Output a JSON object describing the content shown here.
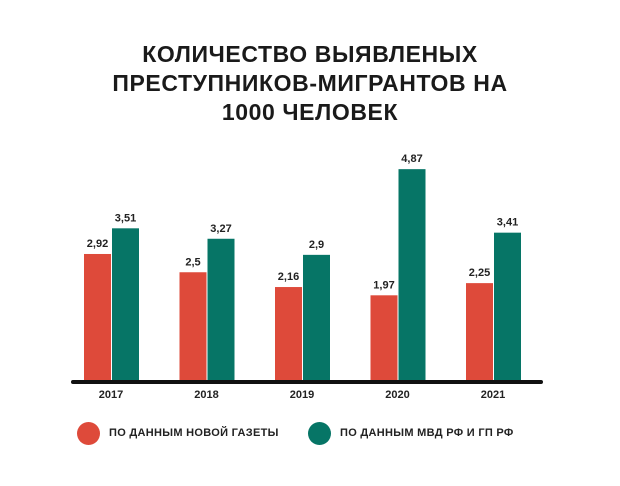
{
  "title_lines": [
    "КОЛИЧЕСТВО ВЫЯВЛЕНЫХ",
    "ПРЕСТУПНИКОВ-МИГРАНТОВ НА",
    "1000 ЧЕЛОВЕК"
  ],
  "colors": {
    "red": "#de4a3a",
    "green": "#067566",
    "axis": "#111111"
  },
  "chart_data": {
    "type": "bar",
    "title": "КОЛИЧЕСТВО ВЫЯВЛЕНЫХ ПРЕСТУПНИКОВ-МИГРАНТОВ НА 1000 ЧЕЛОВЕК",
    "categories": [
      "2017",
      "2018",
      "2019",
      "2020",
      "2021"
    ],
    "series": [
      {
        "name": "ПО ДАННЫМ НОВОЙ ГАЗЕТЫ",
        "values": [
          2.92,
          2.5,
          2.16,
          1.97,
          2.25
        ],
        "labels": [
          "2,92",
          "2,5",
          "2,16",
          "1,97",
          "2,25"
        ],
        "color": "#de4a3a"
      },
      {
        "name": "ПО ДАННЫМ МВД РФ И ГП РФ",
        "values": [
          3.51,
          3.27,
          2.9,
          4.87,
          3.41
        ],
        "labels": [
          "3,51",
          "3,27",
          "2,9",
          "4,87",
          "3,41"
        ],
        "color": "#067566"
      }
    ],
    "ylim": [
      0,
      5
    ],
    "grid": false,
    "legend_position": "bottom"
  }
}
